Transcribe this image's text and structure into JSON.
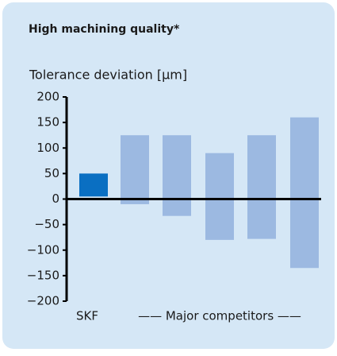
{
  "chart_data": {
    "type": "floating-bar",
    "title": "High machining quality*",
    "y_label": "Tolerance deviation [µm]",
    "annotation": "—— Major competitors ——",
    "categories": [
      "SKF",
      null,
      null,
      null,
      null,
      null
    ],
    "low": [
      5,
      -10,
      -33,
      -80,
      -78,
      -135
    ],
    "high": [
      50,
      125,
      125,
      90,
      125,
      160
    ],
    "colors": [
      "#0a6fc2",
      "#9cb9e1",
      "#9cb9e1",
      "#9cb9e1",
      "#9cb9e1",
      "#9cb9e1"
    ],
    "ylim": [
      -200,
      200
    ],
    "yticks": [
      {
        "value": -200,
        "label": "−200"
      },
      {
        "value": -150,
        "label": "−150"
      },
      {
        "value": -100,
        "label": "−100"
      },
      {
        "value": -50,
        "label": "−50"
      },
      0,
      50,
      100,
      150,
      200
    ],
    "grid": false
  }
}
